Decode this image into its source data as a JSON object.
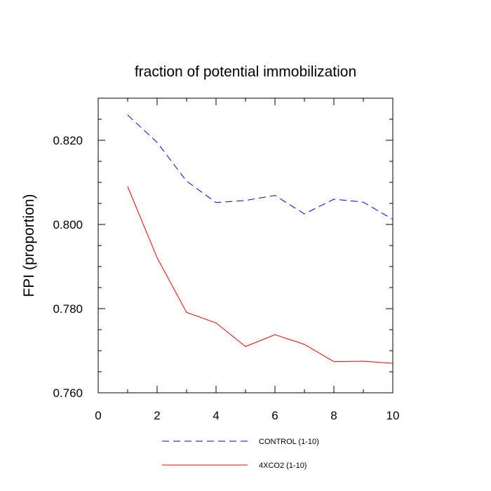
{
  "chart_data": {
    "type": "line",
    "title": "fraction of potential immobilization",
    "xlabel": "",
    "ylabel": "FPI  (proportion)",
    "xlim": [
      0,
      10
    ],
    "ylim": [
      0.76,
      0.83
    ],
    "x_ticks": [
      0,
      2,
      4,
      6,
      8,
      10
    ],
    "x_tick_labels": [
      "0",
      "2",
      "4",
      "6",
      "8",
      "10"
    ],
    "y_ticks": [
      0.76,
      0.78,
      0.8,
      0.82
    ],
    "y_tick_labels": [
      "0.760",
      "0.780",
      "0.800",
      "0.820"
    ],
    "x_minor_ticks": [
      1,
      3,
      5,
      7,
      9
    ],
    "y_minor_ticks": [
      0.765,
      0.77,
      0.775,
      0.785,
      0.79,
      0.795,
      0.805,
      0.81,
      0.815,
      0.825
    ],
    "legend_position": "bottom",
    "series": [
      {
        "name": "CONTROL (1-10)",
        "color": "#0000ff",
        "style": "dashed",
        "x": [
          1,
          2,
          3,
          4,
          5,
          6,
          7,
          8,
          9,
          10
        ],
        "values": [
          0.826,
          0.8195,
          0.8103,
          0.8052,
          0.8057,
          0.8069,
          0.8025,
          0.806,
          0.8053,
          0.8012
        ]
      },
      {
        "name": "4XCO2 (1-10)",
        "color": "#ff0000",
        "style": "solid",
        "x": [
          1,
          2,
          3,
          4,
          5,
          6,
          7,
          8,
          9,
          10
        ],
        "values": [
          0.809,
          0.7921,
          0.7791,
          0.7766,
          0.771,
          0.7738,
          0.7715,
          0.7674,
          0.7675,
          0.767
        ]
      }
    ]
  }
}
